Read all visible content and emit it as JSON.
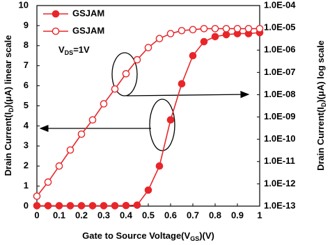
{
  "chart_data": {
    "type": "line",
    "xlabel": [
      "Gate to Source Voltage(V",
      "GS",
      ")(V)"
    ],
    "ylabel": [
      "Drain Current(I",
      "D",
      ")(μA) linear scale"
    ],
    "y2label": [
      "Drain Current(I",
      "D",
      ")(μA)  log scale"
    ],
    "annotation": [
      "V",
      "DS",
      "=1V"
    ],
    "x": [
      0,
      0.05,
      0.1,
      0.15,
      0.2,
      0.25,
      0.3,
      0.35,
      0.4,
      0.45,
      0.5,
      0.55,
      0.6,
      0.65,
      0.7,
      0.75,
      0.8,
      0.85,
      0.9,
      0.95,
      1
    ],
    "series": [
      {
        "name": "GSJAM",
        "color": "#e8262a",
        "marker": "filled",
        "axis": "y",
        "values": [
          0.02,
          0.02,
          0.02,
          0.02,
          0.02,
          0.02,
          0.02,
          0.02,
          0.03,
          0.05,
          0.8,
          2.0,
          4.3,
          6.1,
          7.5,
          8.2,
          8.45,
          8.55,
          8.6,
          8.6,
          8.65
        ]
      },
      {
        "name": "GSJAM",
        "color": "#e8262a",
        "marker": "open",
        "axis": "y2",
        "values": [
          2.8e-13,
          1.2e-12,
          6.3e-12,
          3.3e-11,
          1.7e-10,
          7.4e-10,
          3.9e-09,
          1.8e-08,
          8.7e-08,
          3.7e-07,
          1.3e-06,
          3.3e-06,
          5.5e-06,
          7.5e-06,
          8.3e-06,
          9.2e-06,
          9.2e-06,
          9.2e-06,
          9.2e-06,
          9.2e-06,
          9.2e-06
        ]
      }
    ],
    "xlim": [
      0,
      1
    ],
    "xticks": [
      0,
      0.1,
      0.2,
      0.3,
      0.4,
      0.5,
      0.6,
      0.7,
      0.8,
      0.9,
      1
    ],
    "ylim": [
      0,
      10
    ],
    "yticks": [
      0,
      1,
      2,
      3,
      4,
      5,
      6,
      7,
      8,
      9,
      10
    ],
    "y2scale": "log",
    "y2lim": [
      1e-13,
      0.0001
    ],
    "y2ticks": [
      {
        "value": 1e-13,
        "label": "1.0E-13"
      },
      {
        "value": 1e-12,
        "label": "1.0E-12"
      },
      {
        "value": 1e-11,
        "label": "1.0E-11"
      },
      {
        "value": 1e-10,
        "label": "1.0E-10"
      },
      {
        "value": 1e-09,
        "label": "1.0E-09"
      },
      {
        "value": 1e-08,
        "label": "1.0E-08"
      },
      {
        "value": 1e-07,
        "label": "1.0E-07"
      },
      {
        "value": 1e-06,
        "label": "1.0E-06"
      },
      {
        "value": 1e-05,
        "label": "1.0E-05"
      },
      {
        "value": 0.0001,
        "label": "1.0E-04"
      }
    ],
    "grid": false,
    "legend": "top-left"
  }
}
